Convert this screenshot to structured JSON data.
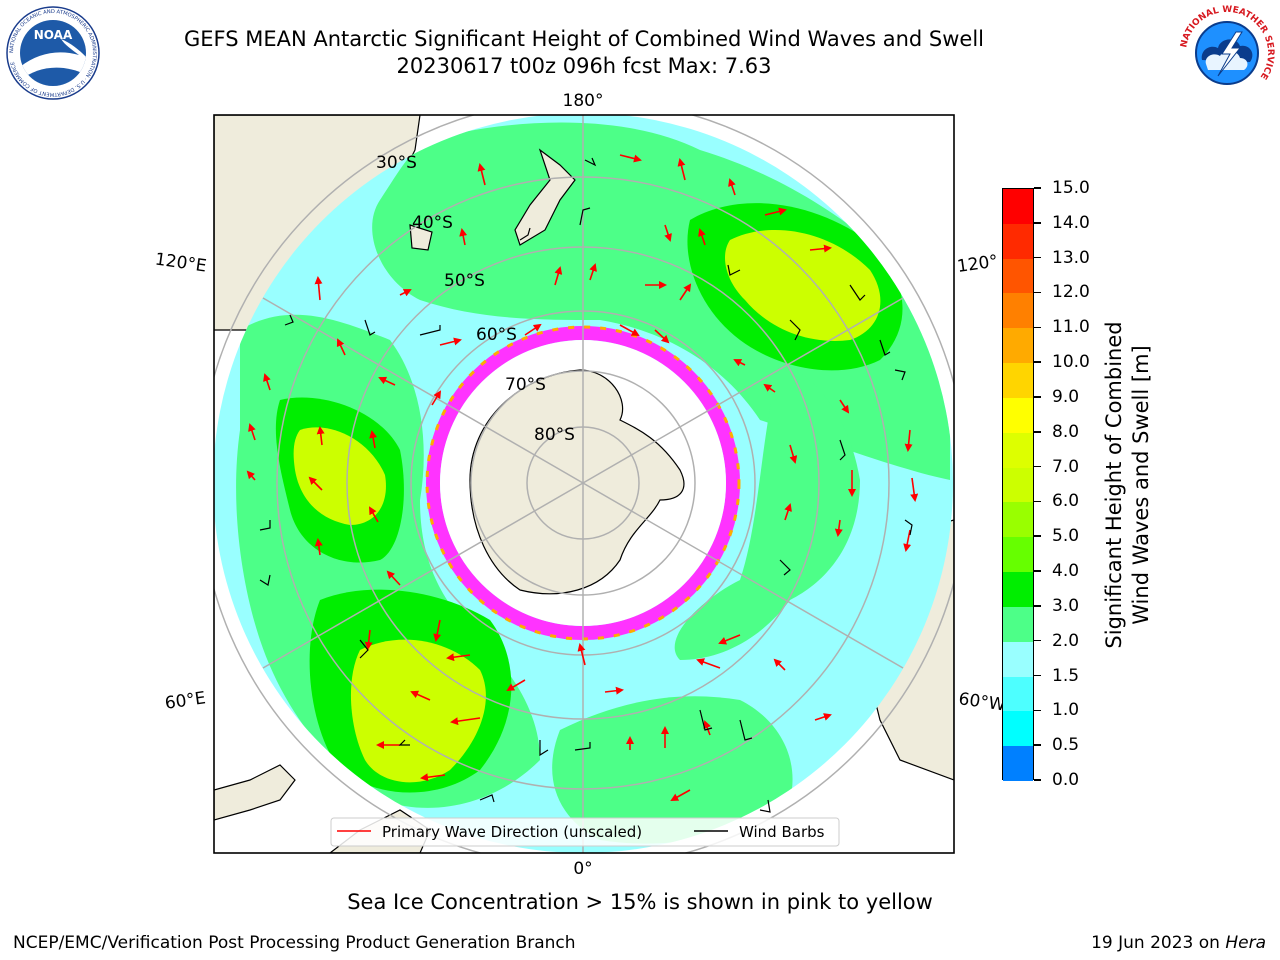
{
  "header": {
    "title_line1": "GEFS MEAN Antarctic Significant Height of Combined Wind Waves and Swell",
    "title_line2": "20230617 t00z 096h fcst   Max: 7.63"
  },
  "map": {
    "meridian_labels": {
      "top": "180°",
      "left_upper": "120°E",
      "right_upper": "120°",
      "left_lower": "60°E",
      "right_lower": "60°W",
      "bottom": "0°"
    },
    "parallel_labels": [
      "30°S",
      "40°S",
      "50°S",
      "60°S",
      "70°S",
      "80°S"
    ],
    "colors": {
      "land": "#efecdc",
      "ocean_low": "#99ffff",
      "ocean_mid": "#4dff88",
      "ocean_high": "#ccff00",
      "sea_ice_edge": "#ff33ff",
      "wave_arrow": "#ff0000",
      "wind_barb": "#000000",
      "grid": "#b0b0b0"
    }
  },
  "legend": {
    "primary_wave_label": "Primary Wave Direction (unscaled)",
    "wind_barbs_label": "Wind Barbs"
  },
  "colorbar": {
    "title_line1": "Significant Height of Combined",
    "title_line2": "Wind Waves and Swell [m]",
    "ticks": [
      "15.0",
      "14.0",
      "13.0",
      "12.0",
      "11.0",
      "10.0",
      "9.0",
      "8.0",
      "7.0",
      "6.0",
      "5.0",
      "4.0",
      "3.0",
      "2.0",
      "1.5",
      "1.0",
      "0.5",
      "0.0"
    ],
    "colors": [
      "#ff0000",
      "#ff2a00",
      "#ff5500",
      "#ff8000",
      "#ffaa00",
      "#ffd500",
      "#ffff00",
      "#ddff00",
      "#ccff00",
      "#99ff00",
      "#66ff00",
      "#00ee00",
      "#4dff88",
      "#99ffff",
      "#4dffff",
      "#00ffff",
      "#0080ff",
      "#0000ff"
    ]
  },
  "notes": {
    "sea_ice": "Sea Ice Concentration > 15% is shown in pink to yellow",
    "credit_left": "NCEP/EMC/Verification Post Processing Product Generation Branch",
    "credit_date": "19 Jun 2023 on ",
    "credit_host": "Hera"
  },
  "logos": {
    "noaa_text": "NOAA",
    "noaa_ring_text": "NATIONAL OCEANIC AND ATMOSPHERIC ADMINISTRATION · U.S. DEPARTMENT OF COMMERCE",
    "nws_ring_text": "NATIONAL WEATHER SERVICE"
  }
}
